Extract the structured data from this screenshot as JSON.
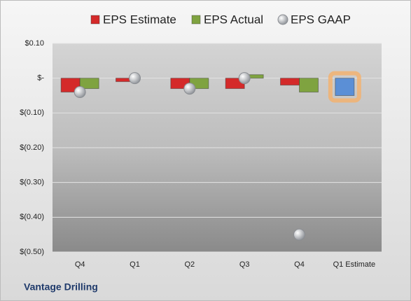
{
  "chart_data": {
    "type": "bar",
    "categories": [
      "Q4",
      "Q1",
      "Q2",
      "Q3",
      "Q4",
      "Q1 Estimate"
    ],
    "series": [
      {
        "name": "EPS Estimate",
        "color": "#d42a2a",
        "values": [
          -0.04,
          -0.01,
          -0.03,
          -0.03,
          -0.02,
          -0.05
        ]
      },
      {
        "name": "EPS Actual",
        "color": "#7fa340",
        "values": [
          -0.03,
          null,
          -0.03,
          0.01,
          -0.04,
          null
        ]
      },
      {
        "name": "EPS GAAP",
        "color": "#a9adb3",
        "marker": "circle",
        "values": [
          -0.04,
          0.0,
          -0.03,
          0.0,
          -0.45,
          null
        ]
      }
    ],
    "highlight": {
      "series": 0,
      "index": 5,
      "color": "#5b8fd6",
      "glow": "#f5b06a"
    },
    "ylim": [
      -0.5,
      0.1
    ],
    "yticks": [
      {
        "value": 0.1,
        "label": "$0.10"
      },
      {
        "value": 0,
        "label": "$-"
      },
      {
        "value": -0.1,
        "label": "$(0.10)"
      },
      {
        "value": -0.2,
        "label": "$(0.20)"
      },
      {
        "value": -0.3,
        "label": "$(0.30)"
      },
      {
        "value": -0.4,
        "label": "$(0.40)"
      },
      {
        "value": -0.5,
        "label": "$(0.50)"
      }
    ],
    "grid": true,
    "legend": "top",
    "footer": "Vantage Drilling"
  }
}
